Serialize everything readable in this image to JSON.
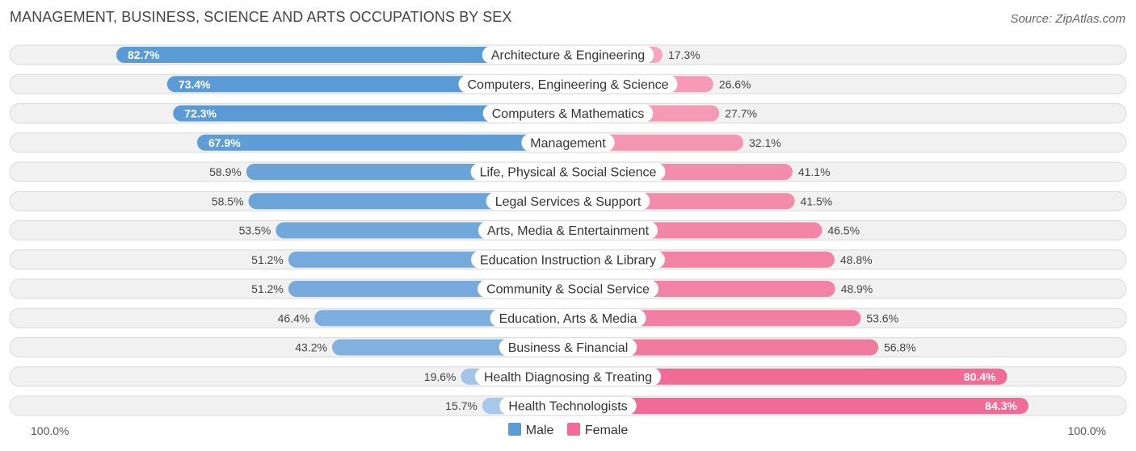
{
  "title": "MANAGEMENT, BUSINESS, SCIENCE AND ARTS OCCUPATIONS BY SEX",
  "source": "Source: ZipAtlas.com",
  "axis": {
    "left_label": "100.0%",
    "right_label": "100.0%"
  },
  "legend": {
    "male_label": "Male",
    "female_label": "Female"
  },
  "colors": {
    "male_strong": "#5b9bd5",
    "male_light": "#a9c8ea",
    "female_strong": "#f06c96",
    "female_light": "#f6a8c0"
  },
  "chart_data": {
    "type": "bar",
    "orientation": "horizontal-diverging",
    "title": "MANAGEMENT, BUSINESS, SCIENCE AND ARTS OCCUPATIONS BY SEX",
    "xlim": [
      -100,
      100
    ],
    "categories": [
      "Architecture & Engineering",
      "Computers, Engineering & Science",
      "Computers & Mathematics",
      "Management",
      "Life, Physical & Social Science",
      "Legal Services & Support",
      "Arts, Media & Entertainment",
      "Education Instruction & Library",
      "Community & Social Service",
      "Education, Arts & Media",
      "Business & Financial",
      "Health Diagnosing & Treating",
      "Health Technologists"
    ],
    "series": [
      {
        "name": "Male",
        "values": [
          82.7,
          73.4,
          72.3,
          67.9,
          58.9,
          58.5,
          53.5,
          51.2,
          51.2,
          46.4,
          43.2,
          19.6,
          15.7
        ],
        "labels": [
          "82.7%",
          "73.4%",
          "72.3%",
          "67.9%",
          "58.9%",
          "58.5%",
          "53.5%",
          "51.2%",
          "51.2%",
          "46.4%",
          "43.2%",
          "19.6%",
          "15.7%"
        ]
      },
      {
        "name": "Female",
        "values": [
          17.3,
          26.6,
          27.7,
          32.1,
          41.1,
          41.5,
          46.5,
          48.8,
          48.9,
          53.6,
          56.8,
          80.4,
          84.3
        ],
        "labels": [
          "17.3%",
          "26.6%",
          "27.7%",
          "32.1%",
          "41.1%",
          "41.5%",
          "46.5%",
          "48.8%",
          "48.9%",
          "53.6%",
          "56.8%",
          "80.4%",
          "84.3%"
        ]
      }
    ]
  }
}
